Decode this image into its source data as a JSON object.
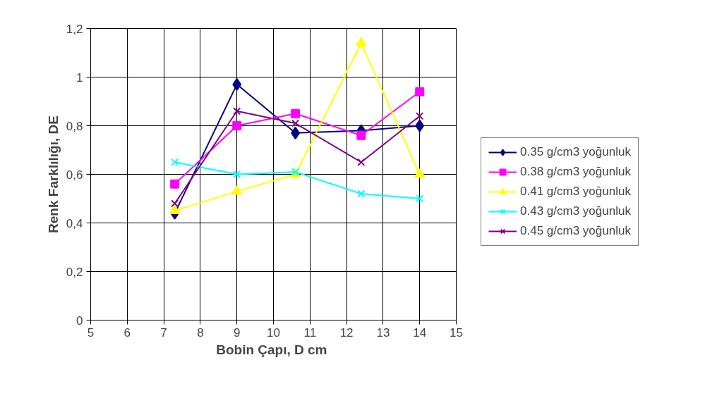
{
  "chart_data": {
    "type": "line",
    "xlabel": "Bobin Çapı, D  cm",
    "ylabel": "Renk Farklılığı, DE",
    "x": [
      7.3,
      9,
      10.6,
      12.4,
      14
    ],
    "xlim": [
      5,
      15
    ],
    "xticks": [
      5,
      6,
      7,
      8,
      9,
      10,
      11,
      12,
      13,
      14,
      15
    ],
    "ylim": [
      0,
      1.2
    ],
    "yticks": [
      {
        "value": 0,
        "label": "0"
      },
      {
        "value": 0.2,
        "label": "0,2"
      },
      {
        "value": 0.4,
        "label": "0,4"
      },
      {
        "value": 0.6,
        "label": "0,6"
      },
      {
        "value": 0.8,
        "label": "0,8"
      },
      {
        "value": 1,
        "label": "1"
      },
      {
        "value": 1.2,
        "label": "1,2"
      }
    ],
    "grid": true,
    "legend": "right",
    "line_style": "solid",
    "series": [
      {
        "name": "0.35 g/cm3 yoğunluk",
        "color": "#000080",
        "marker": "diamond",
        "values": [
          0.44,
          0.97,
          0.77,
          0.78,
          0.8
        ]
      },
      {
        "name": "0.38 g/cm3 yoğunluk",
        "color": "#ff00ff",
        "marker": "square",
        "values": [
          0.56,
          0.8,
          0.85,
          0.76,
          0.94
        ]
      },
      {
        "name": "0.41 g/cm3 yoğunluk",
        "color": "#ffff00",
        "marker": "triangle",
        "values": [
          0.45,
          0.53,
          0.6,
          1.14,
          0.6
        ]
      },
      {
        "name": "0.43 g/cm3 yoğunluk",
        "color": "#00ffff",
        "marker": "cross",
        "values": [
          0.65,
          0.6,
          0.61,
          0.52,
          0.5
        ]
      },
      {
        "name": "0.45 g/cm3 yoğunluk",
        "color": "#800080",
        "marker": "cross",
        "values": [
          0.48,
          0.86,
          0.81,
          0.65,
          0.84
        ]
      }
    ]
  }
}
